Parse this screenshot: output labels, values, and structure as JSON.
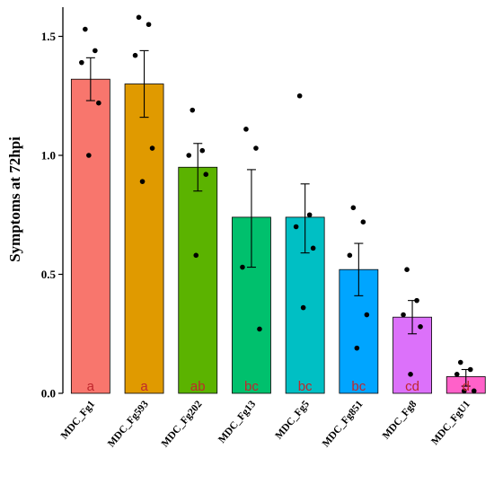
{
  "chart_data": {
    "type": "bar",
    "ylabel": "Symptoms at 72hpi",
    "ylim": [
      0,
      1.6
    ],
    "yticks": [
      "0.0",
      "0.5",
      "1.0",
      "1.5"
    ],
    "categories": [
      "MDC_Fg1",
      "MDC_Fg593",
      "MDC_Fg202",
      "MDC_Fg13",
      "MDC_Fg5",
      "MDC_Fg851",
      "MDC_Fg8",
      "MDC_FgU1"
    ],
    "values": [
      1.32,
      1.3,
      0.95,
      0.74,
      0.74,
      0.52,
      0.32,
      0.07
    ],
    "error_low": [
      1.23,
      1.16,
      0.85,
      0.53,
      0.59,
      0.41,
      0.25,
      0.03
    ],
    "error_high": [
      1.41,
      1.44,
      1.05,
      0.94,
      0.88,
      0.63,
      0.39,
      0.1
    ],
    "points": [
      [
        1.53,
        1.44,
        1.39,
        1.22,
        1.0
      ],
      [
        1.58,
        1.55,
        1.42,
        1.03,
        0.89
      ],
      [
        1.19,
        1.02,
        1.0,
        0.92,
        0.58
      ],
      [
        1.11,
        1.03,
        0.53,
        0.27
      ],
      [
        1.25,
        0.75,
        0.7,
        0.61,
        0.36
      ],
      [
        0.78,
        0.72,
        0.58,
        0.33,
        0.19
      ],
      [
        0.52,
        0.39,
        0.33,
        0.28,
        0.08
      ],
      [
        0.13,
        0.1,
        0.08,
        0.01,
        0.01
      ]
    ],
    "significance": [
      "a",
      "a",
      "ab",
      "bc",
      "bc",
      "bc",
      "cd",
      "d"
    ],
    "colors": [
      "#F8766D",
      "#E09A00",
      "#5BB300",
      "#00C06D",
      "#00BFC4",
      "#00A5FF",
      "#DC71FA",
      "#FF61C9"
    ],
    "grid": false,
    "legend": "none"
  }
}
